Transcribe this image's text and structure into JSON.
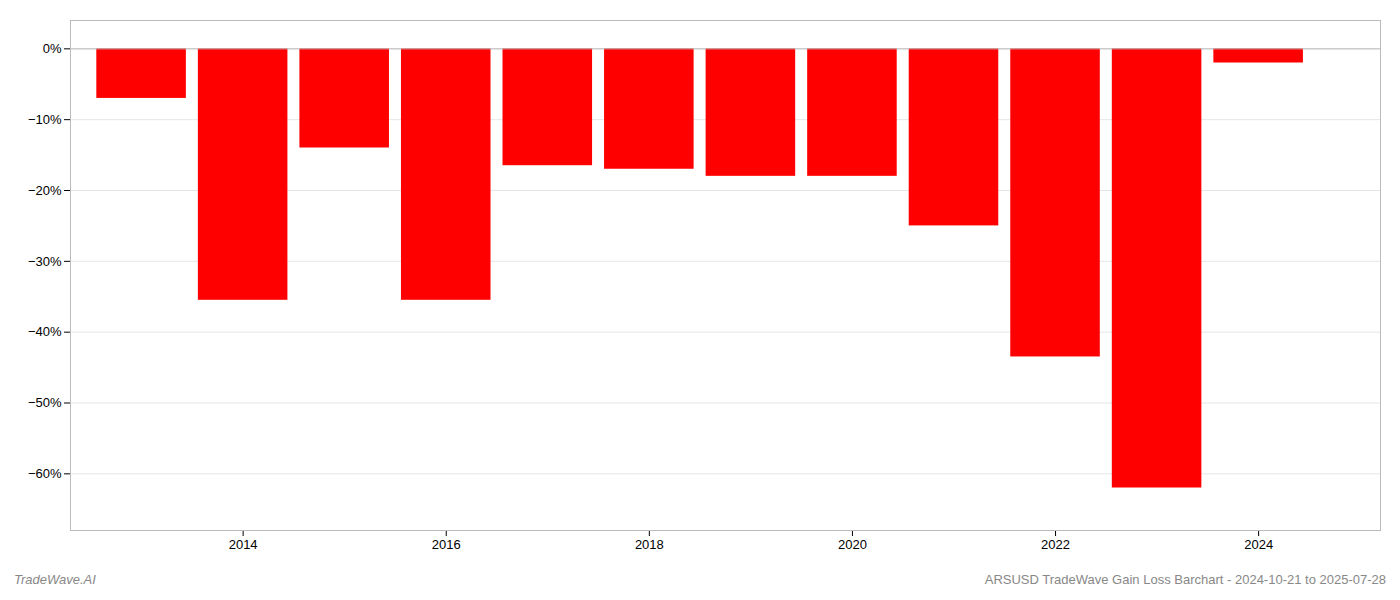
{
  "chart_data": {
    "type": "bar",
    "x": [
      2013,
      2014,
      2015,
      2016,
      2017,
      2018,
      2019,
      2020,
      2021,
      2022,
      2023,
      2024
    ],
    "values": [
      -7.0,
      -35.5,
      -14.0,
      -35.5,
      -16.5,
      -17.0,
      -18.0,
      -18.0,
      -25.0,
      -43.5,
      -62.0,
      -2.0
    ],
    "color": "#ff0000",
    "xlim": [
      2012.3,
      2025.2
    ],
    "xticks": [
      2014,
      2016,
      2018,
      2020,
      2022,
      2024
    ],
    "ylim": [
      -68,
      4
    ],
    "yticks": [
      {
        "value": 0,
        "label": "0%"
      },
      {
        "value": -10,
        "label": "−10%"
      },
      {
        "value": -20,
        "label": "−20%"
      },
      {
        "value": -30,
        "label": "−30%"
      },
      {
        "value": -40,
        "label": "−40%"
      },
      {
        "value": -50,
        "label": "−50%"
      },
      {
        "value": -60,
        "label": "−60%"
      }
    ],
    "grid": true,
    "annotations": [
      "TradeWave.AI",
      "ARSUSD TradeWave Gain Loss Barchart - 2024-10-21 to 2025-07-28"
    ]
  }
}
